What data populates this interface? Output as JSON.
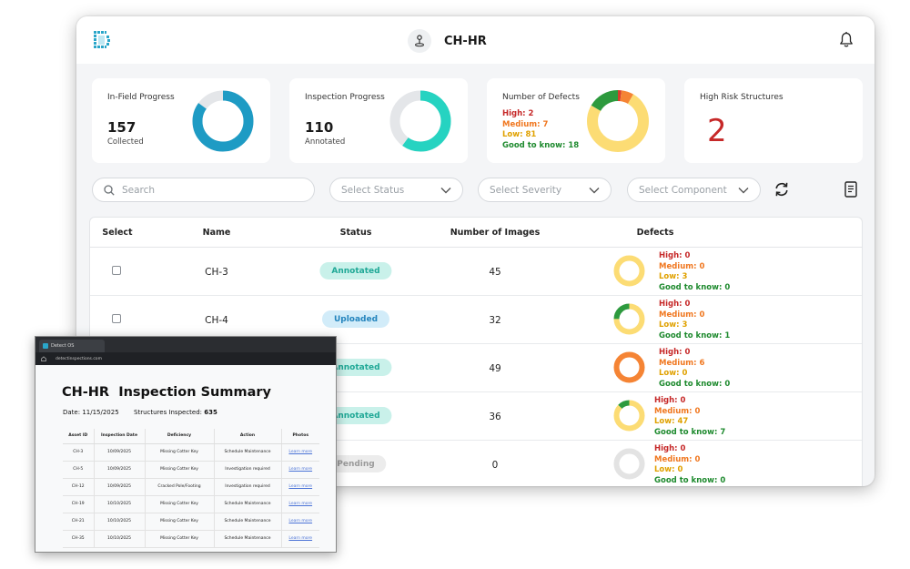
{
  "header": {
    "title": "CH-HR"
  },
  "cards": {
    "in_field": {
      "title": "In-Field Progress",
      "value": "157",
      "sub": "Collected",
      "ring_fraction": 0.85
    },
    "inspection": {
      "title": "Inspection Progress",
      "value": "110",
      "sub": "Annotated",
      "ring_fraction": 0.6
    },
    "defects": {
      "title": "Number of Defects",
      "high": "High: 2",
      "medium": "Medium: 7",
      "low": "Low: 81",
      "good": "Good to know: 18",
      "values": [
        2,
        7,
        81,
        18
      ]
    },
    "high_risk": {
      "title": "High Risk Structures",
      "value": "2"
    }
  },
  "filters": {
    "search_placeholder": "Search",
    "status": "Select Status",
    "severity": "Select Severity",
    "component": "Select Component"
  },
  "table": {
    "headers": {
      "select": "Select",
      "name": "Name",
      "status": "Status",
      "images": "Number of Images",
      "defects": "Defects"
    },
    "rows": [
      {
        "name": "CH-3",
        "status": "Annotated",
        "images": "45",
        "high": "High: 0",
        "medium": "Medium: 0",
        "low": "Low: 3",
        "good": "Good to know: 0",
        "defect_values": [
          0,
          0,
          3,
          0
        ]
      },
      {
        "name": "CH-4",
        "status": "Uploaded",
        "images": "32",
        "high": "High: 0",
        "medium": "Medium: 0",
        "low": "Low: 3",
        "good": "Good to know: 1",
        "defect_values": [
          0,
          0,
          3,
          1
        ]
      },
      {
        "name": "",
        "status": "Annotated",
        "images": "49",
        "high": "High: 0",
        "medium": "Medium: 6",
        "low": "Low: 0",
        "good": "Good to know: 0",
        "defect_values": [
          0,
          6,
          0,
          0
        ]
      },
      {
        "name": "",
        "status": "Annotated",
        "images": "36",
        "high": "High: 0",
        "medium": "Medium: 0",
        "low": "Low: 47",
        "good": "Good to know: 7",
        "defect_values": [
          0,
          0,
          47,
          7
        ]
      },
      {
        "name": "",
        "status": "Pending",
        "images": "0",
        "high": "High: 0",
        "medium": "Medium: 0",
        "low": "Low: 0",
        "good": "Good to know: 0",
        "defect_values": [
          0,
          0,
          0,
          0
        ]
      }
    ]
  },
  "summary": {
    "tab_title": "Detect OS",
    "url": "detectinspections.com",
    "heading": "CH-HR  Inspection Summary",
    "date": "Date: 11/15/2025",
    "structures_label": "Structures Inspected:",
    "structures_value": "635",
    "columns": [
      "Asset ID",
      "Inspection Date",
      "Deficiency",
      "Action",
      "Photos"
    ],
    "rows": [
      [
        "CH-3",
        "10/09/2025",
        "Missing Cotter Key",
        "Schedule Maintenance",
        "Learn more"
      ],
      [
        "CH-5",
        "10/09/2025",
        "Missing Cotter Key",
        "Investigation required",
        "Learn more"
      ],
      [
        "CH-12",
        "10/09/2025",
        "Cracked Pole/Footing",
        "Investigation required",
        "Learn more"
      ],
      [
        "CH-19",
        "10/10/2025",
        "Missing Cotter Key",
        "Schedule Maintenance",
        "Learn more"
      ],
      [
        "CH-21",
        "10/10/2025",
        "Missing Cotter Key",
        "Schedule Maintenance",
        "Learn more"
      ],
      [
        "CH-35",
        "10/10/2025",
        "Missing Cotter Key",
        "Schedule Maintenance",
        "Learn more"
      ]
    ]
  },
  "colors": {
    "high": "#c62828",
    "medium": "#f0771f",
    "low": "#e0a100",
    "good": "#1e8a2e",
    "ring_blue": "#1e9bc4",
    "ring_teal": "#26d3c1",
    "ring_track": "#e4e6e9",
    "donut_high": "#d93b2b",
    "donut_medium": "#f58434",
    "donut_low": "#fcdc74",
    "donut_good": "#2d9a3e",
    "donut_empty": "#e3e3e3"
  }
}
